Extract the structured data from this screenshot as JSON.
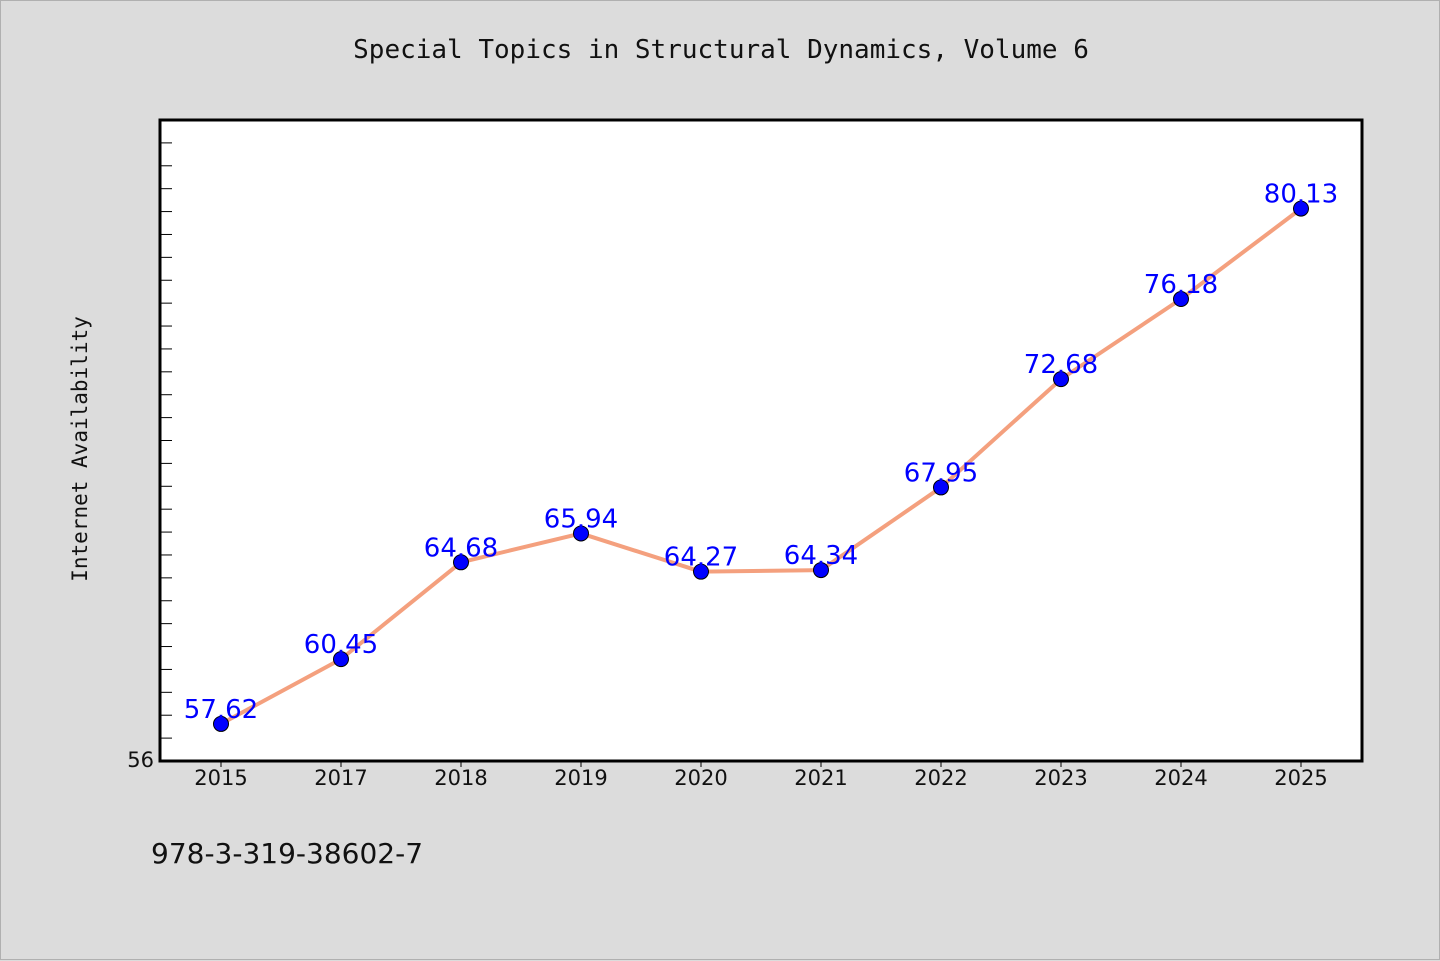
{
  "chart_data": {
    "type": "line",
    "title": "Special Topics in Structural Dynamics, Volume 6",
    "xlabel": "",
    "ylabel": "Internet Availability",
    "categories": [
      "2015",
      "2017",
      "2018",
      "2019",
      "2020",
      "2021",
      "2022",
      "2023",
      "2024",
      "2025"
    ],
    "series": [
      {
        "values": [
          57.62,
          60.45,
          64.68,
          65.94,
          64.27,
          64.34,
          67.95,
          72.68,
          76.18,
          80.13
        ],
        "data_labels": [
          "57.62",
          "60.45",
          "64.68",
          "65.94",
          "64.27",
          "64.34",
          "67.95",
          "72.68",
          "76.18",
          "80.13"
        ]
      }
    ],
    "ylim": [
      56,
      84
    ],
    "y_tick_labels": [
      "56"
    ],
    "grid": false,
    "legend": "none",
    "colors": {
      "line": "#f4a07e",
      "marker": "#0000ff",
      "data_label": "#0000ff",
      "plot_background": "#ffffff",
      "figure_background": "#dcdcdc"
    }
  },
  "caption": "978-3-319-38602-7"
}
